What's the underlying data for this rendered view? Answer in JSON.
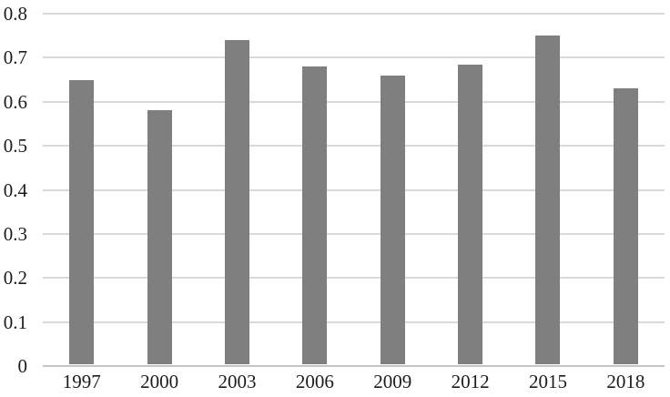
{
  "chart": {
    "background_color": "#ffffff",
    "bar_color": "#7f7f7f",
    "gridline_color": "#d9d9d9",
    "axis_line_color": "#c5c5c5",
    "text_color": "#1c1c1c"
  },
  "chart_data": {
    "type": "bar",
    "title": "",
    "xlabel": "",
    "ylabel": "",
    "categories": [
      "1997",
      "2000",
      "2003",
      "2006",
      "2009",
      "2012",
      "2015",
      "2018"
    ],
    "values": [
      0.65,
      0.58,
      0.74,
      0.68,
      0.66,
      0.685,
      0.75,
      0.63
    ],
    "ylim": [
      0,
      0.8
    ],
    "ytick_labels": [
      "0.8",
      "0.7",
      "0.6",
      "0.5",
      "0.4",
      "0.3",
      "0.2",
      "0.1",
      "0"
    ],
    "ytick_values": [
      0.8,
      0.7,
      0.6,
      0.5,
      0.4,
      0.3,
      0.2,
      0.1,
      0
    ],
    "grid": true,
    "legend": false
  }
}
